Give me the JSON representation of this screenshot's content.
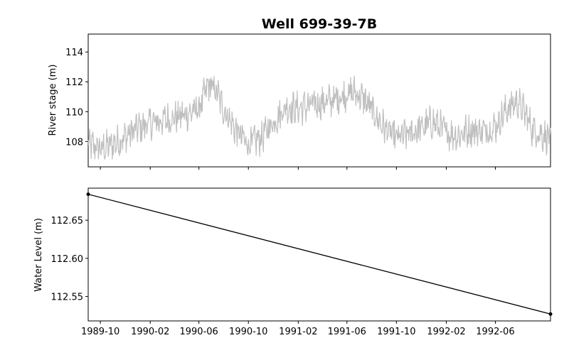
{
  "title": "Well 699-39-7B",
  "colors": {
    "stage": "#bfbfbf",
    "level": "#000000",
    "frame": "#000000"
  },
  "chart_data": [
    {
      "type": "line",
      "ylabel": "River stage (m)",
      "xlabel": "",
      "xlim": [
        "1989-09-01",
        "1992-10-15"
      ],
      "ylim": [
        106.3,
        115.2
      ],
      "yticks": [
        108,
        110,
        112,
        114
      ],
      "x_tick_labels_shown": false,
      "series": [
        {
          "x": [
            "1989-09-01",
            "1989-10-01",
            "1989-11-01",
            "1989-12-01",
            "1990-01-01",
            "1990-02-01",
            "1990-03-01",
            "1990-04-01",
            "1990-05-01",
            "1990-06-01",
            "1990-06-25",
            "1990-07-15",
            "1990-08-01",
            "1990-09-01",
            "1990-10-01",
            "1990-11-01",
            "1990-12-01",
            "1991-01-01",
            "1991-02-01",
            "1991-03-01",
            "1991-04-01",
            "1991-05-01",
            "1991-06-01",
            "1991-06-20",
            "1991-07-15",
            "1991-08-01",
            "1991-09-01",
            "1991-10-01",
            "1991-11-01",
            "1991-12-01",
            "1992-01-01",
            "1992-02-01",
            "1992-03-01",
            "1992-04-01",
            "1992-05-01",
            "1992-06-01",
            "1992-07-01",
            "1992-07-25",
            "1992-08-15",
            "1992-09-01",
            "1992-10-01",
            "1992-10-15"
          ],
          "values": [
            107.8,
            107.5,
            107.8,
            108.3,
            108.9,
            109.2,
            109.4,
            109.6,
            109.8,
            110.2,
            111.8,
            111.3,
            110.2,
            108.7,
            107.8,
            108.2,
            109.3,
            110.3,
            110.2,
            110.4,
            110.6,
            110.8,
            111.2,
            111.3,
            110.8,
            110.1,
            108.9,
            108.2,
            108.5,
            108.9,
            109.3,
            108.6,
            108.4,
            108.8,
            108.7,
            109.0,
            110.2,
            110.7,
            109.8,
            108.8,
            108.4,
            108.2
          ]
        }
      ]
    },
    {
      "type": "line",
      "ylabel": "Water Level (m)",
      "xlabel": "",
      "xlim": [
        "1989-09-01",
        "1992-10-15"
      ],
      "ylim": [
        112.518,
        112.692
      ],
      "yticks": [
        "112.55",
        "112.60",
        "112.65"
      ],
      "xticks": [
        "1989-10",
        "1990-02",
        "1990-06",
        "1990-10",
        "1991-02",
        "1991-06",
        "1991-10",
        "1992-02",
        "1992-06"
      ],
      "series": [
        {
          "x": [
            "1989-09-01",
            "1992-10-15"
          ],
          "values": [
            112.684,
            112.527
          ]
        }
      ]
    }
  ]
}
